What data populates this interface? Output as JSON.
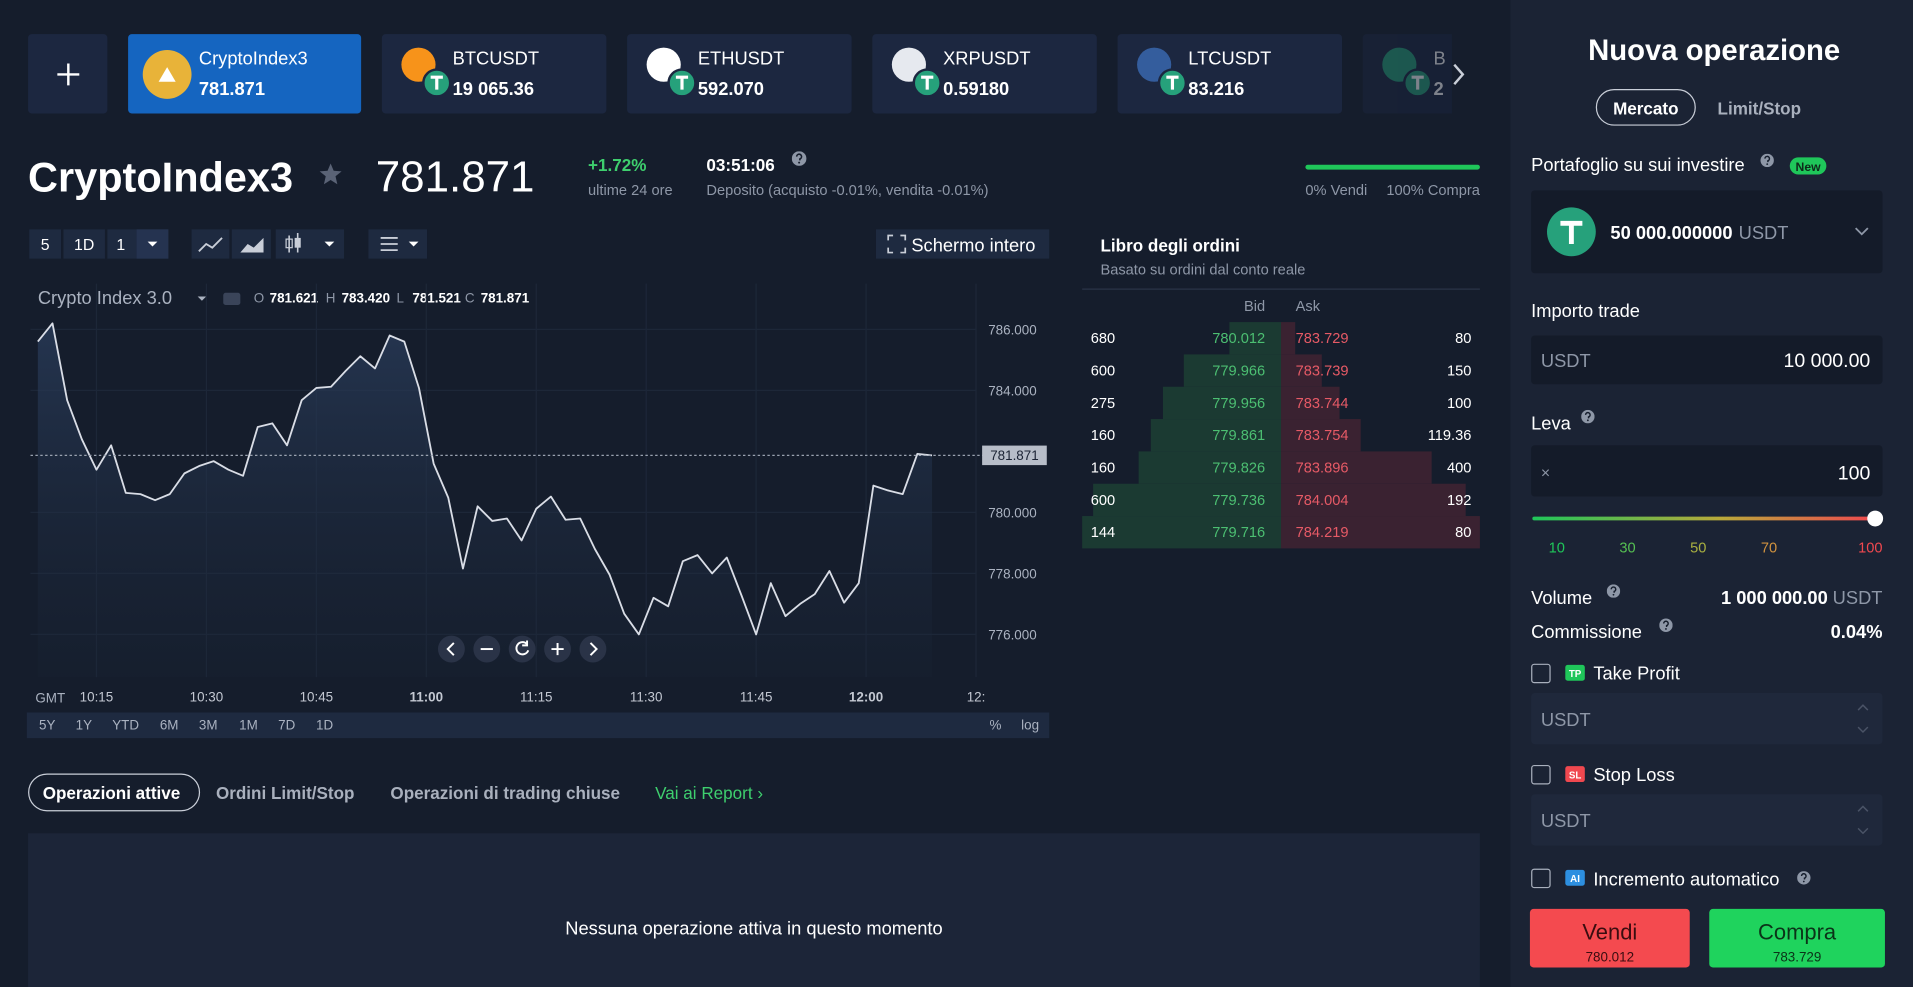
{
  "tickers": [
    {
      "name": "CryptoIndex3",
      "price": "781.871"
    },
    {
      "name": "BTCUSDT",
      "price": "19 065.36"
    },
    {
      "name": "ETHUSDT",
      "price": "592.070"
    },
    {
      "name": "XRPUSDT",
      "price": "0.59180"
    },
    {
      "name": "LTCUSDT",
      "price": "83.216"
    },
    {
      "name": "B",
      "price": "2"
    }
  ],
  "asset": {
    "name": "CryptoIndex3",
    "price": "781.871",
    "change": "+1.72%",
    "change_label": "ultime 24 ore",
    "timer": "03:51:06",
    "deposit": "Deposito (acquisto -0.01%, vendita -0.01%)",
    "sentiment_sell": "0% Vendi",
    "sentiment_buy": "100% Compra"
  },
  "toolbar": {
    "interval": "5",
    "period": "1D",
    "count": "1",
    "fullscreen": "Schermo intero"
  },
  "chart_data": {
    "type": "line",
    "title": "Crypto Index 3.0",
    "ohlc": [
      {
        "key": "O",
        "value": "781.621"
      },
      {
        "key": "H",
        "value": "783.420"
      },
      {
        "key": "L",
        "value": "781.521"
      },
      {
        "key": "C",
        "value": "781.871"
      }
    ],
    "timezone": "GMT",
    "color": "#d9dde6",
    "x": [
      "10:07",
      "10:09",
      "10:11",
      "10:13",
      "10:15",
      "10:17",
      "10:19",
      "10:21",
      "10:23",
      "10:25",
      "10:27",
      "10:29",
      "10:31",
      "10:33",
      "10:35",
      "10:37",
      "10:39",
      "10:41",
      "10:43",
      "10:45",
      "10:47",
      "10:49",
      "10:51",
      "10:53",
      "10:55",
      "10:57",
      "10:59",
      "11:01",
      "11:03",
      "11:05",
      "11:07",
      "11:09",
      "11:11",
      "11:13",
      "11:15",
      "11:17",
      "11:19",
      "11:21",
      "11:23",
      "11:25",
      "11:27",
      "11:29",
      "11:31",
      "11:33",
      "11:35",
      "11:37",
      "11:39",
      "11:41",
      "11:43",
      "11:45",
      "11:47",
      "11:49",
      "11:51",
      "11:53",
      "11:55",
      "11:57",
      "11:59",
      "12:01",
      "12:03",
      "12:05",
      "12:07",
      "12:09"
    ],
    "values": [
      785.6,
      786.2,
      783.68,
      782.4,
      781.4,
      782.2,
      780.64,
      780.6,
      780.4,
      780.6,
      781.28,
      781.52,
      781.68,
      781.4,
      781.2,
      782.8,
      782.92,
      782.2,
      783.68,
      784.08,
      784.12,
      784.64,
      785.12,
      784.72,
      785.8,
      785.6,
      784.08,
      781.6,
      780.48,
      778.16,
      780.2,
      779.72,
      779.8,
      779.08,
      780.12,
      780.52,
      779.76,
      779.8,
      778.8,
      777.96,
      776.68,
      776.0,
      777.2,
      776.92,
      778.4,
      778.6,
      778.0,
      778.52,
      777.28,
      776.0,
      777.68,
      776.6,
      777.0,
      777.32,
      778.08,
      777.04,
      777.68,
      780.88,
      780.72,
      780.6,
      781.92,
      781.87
    ],
    "xlim": [
      "10:06",
      "12:15"
    ],
    "xticks": [
      "10:15",
      "10:30",
      "10:45",
      "11:00",
      "11:15",
      "11:30",
      "11:45",
      "12:00",
      {
        "value": "12:15",
        "label": "12:"
      }
    ],
    "ylim": [
      774.6,
      787.5
    ],
    "yticks": [
      {
        "value": 776,
        "label": "776.000"
      },
      {
        "value": 778,
        "label": "778.000"
      },
      {
        "value": 780,
        "label": "780.000"
      },
      {
        "value": 784,
        "label": "784.000"
      },
      {
        "value": 786,
        "label": "786.000"
      }
    ],
    "current": {
      "value": 781.871,
      "label": "781.871"
    },
    "grid": true,
    "ranges": [
      "5Y",
      "1Y",
      "YTD",
      "6M",
      "3M",
      "1M",
      "7D",
      "1D"
    ],
    "scale_options": [
      "%",
      "log"
    ]
  },
  "order_book": {
    "title": "Libro degli ordini",
    "subtitle": "Basato su ordini dal conto reale",
    "headers": [
      "Bid",
      "Ask"
    ],
    "rows": [
      [
        "680",
        "780.012",
        "783.729",
        "80"
      ],
      [
        "600",
        "779.966",
        "783.739",
        "150"
      ],
      [
        "275",
        "779.956",
        "783.744",
        "100"
      ],
      [
        "160",
        "779.861",
        "783.754",
        "119.36"
      ],
      [
        "160",
        "779.826",
        "783.896",
        "400"
      ],
      [
        "600",
        "779.736",
        "784.004",
        "192"
      ],
      [
        "144",
        "779.716",
        "784.219",
        "80"
      ]
    ]
  },
  "tabs": [
    "Operazioni attive",
    "Ordini Limit/Stop",
    "Operazioni di trading chiuse"
  ],
  "report_link": "Vai ai Report ›",
  "empty": "Nessuna operazione attiva in questo momento",
  "panel": {
    "title": "Nuova operazione",
    "modes": [
      "Mercato",
      "Limit/Stop"
    ],
    "portfolio_label": "Portafoglio su sui investire",
    "new_badge": "New",
    "balance": "50 000.000000",
    "balance_currency": "USDT",
    "amount_label": "Importo trade",
    "amount_currency": "USDT",
    "amount": "10 000.00",
    "leverage_label": "Leva",
    "leverage_prefix": "×",
    "leverage": "100",
    "leverage_marks": [
      "10",
      "30",
      "50",
      "70",
      "100"
    ],
    "volume_label": "Volume",
    "volume": "1 000 000.00",
    "volume_currency": "USDT",
    "commission_label": "Commissione",
    "commission": "0.04%",
    "take_profit": {
      "badge": "TP",
      "label": "Take Profit",
      "placeholder": "USDT"
    },
    "stop_loss": {
      "badge": "SL",
      "label": "Stop Loss",
      "placeholder": "USDT"
    },
    "auto": {
      "badge": "AI",
      "label": "Incremento automatico"
    },
    "sell": {
      "label": "Vendi",
      "price": "780.012"
    },
    "buy": {
      "label": "Compra",
      "price": "783.729"
    }
  }
}
